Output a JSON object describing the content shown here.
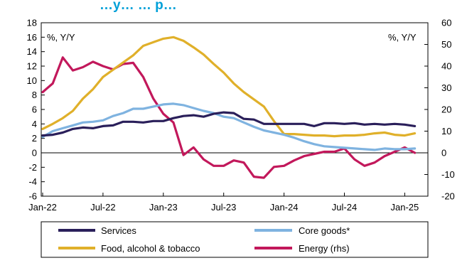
{
  "chart_data": {
    "type": "line",
    "title": "…y… … p…",
    "y_left_unit": "%, Y/Y",
    "y_right_unit": "%, Y/Y",
    "ylim_left": [
      -6,
      18
    ],
    "ylim_right": [
      -20,
      60
    ],
    "yticks_left": [
      -6,
      -4,
      -2,
      0,
      2,
      4,
      6,
      8,
      10,
      12,
      14,
      16,
      18
    ],
    "yticks_right": [
      -20,
      -10,
      0,
      10,
      20,
      30,
      40,
      50,
      60
    ],
    "yticks_left_labels": [
      "-6",
      "-4",
      "-2",
      "0",
      "2",
      "4",
      "6",
      "8",
      "10",
      "12",
      "14",
      "16",
      "18"
    ],
    "yticks_right_labels": [
      "-20",
      "-10",
      "0",
      "10",
      "20",
      "30",
      "40",
      "50",
      "60"
    ],
    "x_start": "Jan-22",
    "x_end": "Feb-25",
    "xtick_labels": [
      "Jan-22",
      "Jul-22",
      "Jan-23",
      "Jul-23",
      "Jan-24",
      "Jul-24",
      "Jan-25"
    ],
    "grid": false,
    "legend_position": "bottom",
    "series": [
      {
        "name": "Services",
        "axis": "left",
        "color": "#2a1f5a",
        "values": [
          2.4,
          2.5,
          2.8,
          3.3,
          3.5,
          3.4,
          3.7,
          3.8,
          4.3,
          4.3,
          4.2,
          4.4,
          4.4,
          4.8,
          5.1,
          5.2,
          5.0,
          5.4,
          5.6,
          5.5,
          4.7,
          4.6,
          4.0,
          4.0,
          4.0,
          4.0,
          4.0,
          3.7,
          4.1,
          4.1,
          4.0,
          4.1,
          3.9,
          4.0,
          3.9,
          4.0,
          3.9,
          3.7
        ]
      },
      {
        "name": "Core goods*",
        "axis": "left",
        "color": "#7fb3e0",
        "values": [
          2.2,
          3.0,
          3.4,
          3.8,
          4.2,
          4.3,
          4.5,
          5.1,
          5.5,
          6.1,
          6.1,
          6.4,
          6.7,
          6.8,
          6.6,
          6.2,
          5.8,
          5.5,
          5.0,
          4.8,
          4.2,
          3.6,
          3.1,
          2.8,
          2.5,
          2.1,
          1.6,
          1.2,
          0.9,
          0.8,
          0.7,
          0.6,
          0.5,
          0.4,
          0.6,
          0.5,
          0.5,
          0.6
        ]
      },
      {
        "name": "Food, alcohol & tobacco",
        "axis": "left",
        "color": "#e0b02a",
        "values": [
          3.3,
          4.0,
          4.8,
          5.8,
          7.5,
          8.8,
          10.5,
          11.5,
          12.5,
          13.5,
          14.8,
          15.3,
          15.8,
          16.0,
          15.5,
          14.6,
          13.6,
          12.3,
          11.1,
          9.6,
          8.4,
          7.4,
          6.4,
          4.4,
          2.6,
          2.6,
          2.5,
          2.4,
          2.4,
          2.3,
          2.4,
          2.4,
          2.5,
          2.7,
          2.8,
          2.5,
          2.4,
          2.7
        ]
      },
      {
        "name": "Energy (rhs)",
        "axis": "right",
        "color": "#c2185b",
        "values": [
          28.0,
          32.0,
          44.0,
          38.0,
          39.5,
          42.0,
          40.0,
          38.5,
          41.0,
          41.5,
          35.0,
          25.0,
          18.0,
          14.0,
          -1.0,
          2.5,
          -3.0,
          -6.0,
          -6.0,
          -3.5,
          -4.5,
          -11.0,
          -11.5,
          -6.5,
          -6.0,
          -3.5,
          -1.5,
          -0.5,
          0.5,
          0.5,
          2.0,
          -3.0,
          -6.0,
          -4.5,
          -1.5,
          0.5,
          2.5,
          0.0
        ]
      }
    ]
  }
}
